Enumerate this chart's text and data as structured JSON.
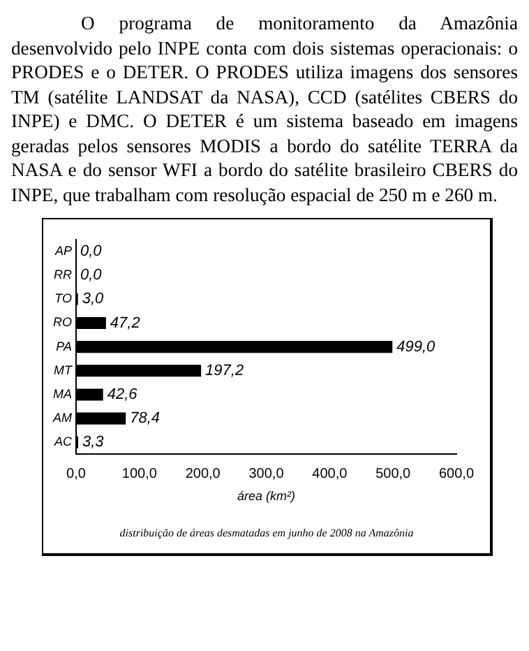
{
  "chart_data": {
    "type": "bar",
    "orientation": "horizontal",
    "subtitle": "O programa de monitoramento da Amazônia desenvolvido pelo INPE conta com dois sistemas operacionais: o PRODES e o DETER. O PRODES utiliza imagens dos sensores TM (satélite LANDSAT da NASA), CCD (satélites CBERS do INPE) e DMC. O DETER é um sistema baseado em imagens geradas pelos sensores MODIS a bordo do satélite TERRA da NASA e do sensor WFI a bordo do satélite brasileiro CBERS do INPE, que trabalham com resolução espacial de 250 m e 260 m.",
    "categories": [
      "AP",
      "RR",
      "TO",
      "RO",
      "PA",
      "MT",
      "MA",
      "AM",
      "AC"
    ],
    "values": [
      0,
      0,
      3,
      47.2,
      499,
      197.2,
      42.6,
      78.4,
      3.3
    ],
    "value_labels": [
      "0,0",
      "0,0",
      "3,0",
      "47,2",
      "499,0",
      "197,2",
      "42,6",
      "78,4",
      "3,3"
    ],
    "color": "#000000",
    "xlabel": "área (km²)",
    "xlim": [
      0,
      600
    ],
    "xticks": [
      {
        "value": 0,
        "label": "0,0"
      },
      {
        "value": 100,
        "label": "100,0"
      },
      {
        "value": 200,
        "label": "200,0"
      },
      {
        "value": 300,
        "label": "300,0"
      },
      {
        "value": 400,
        "label": "400,0"
      },
      {
        "value": 500,
        "label": "500,0"
      },
      {
        "value": 600,
        "label": "600,0"
      }
    ],
    "grid": false,
    "legend": false,
    "annotations": [
      "distribuição de áreas desmatadas em junho de 2008 na Amazônia"
    ]
  }
}
